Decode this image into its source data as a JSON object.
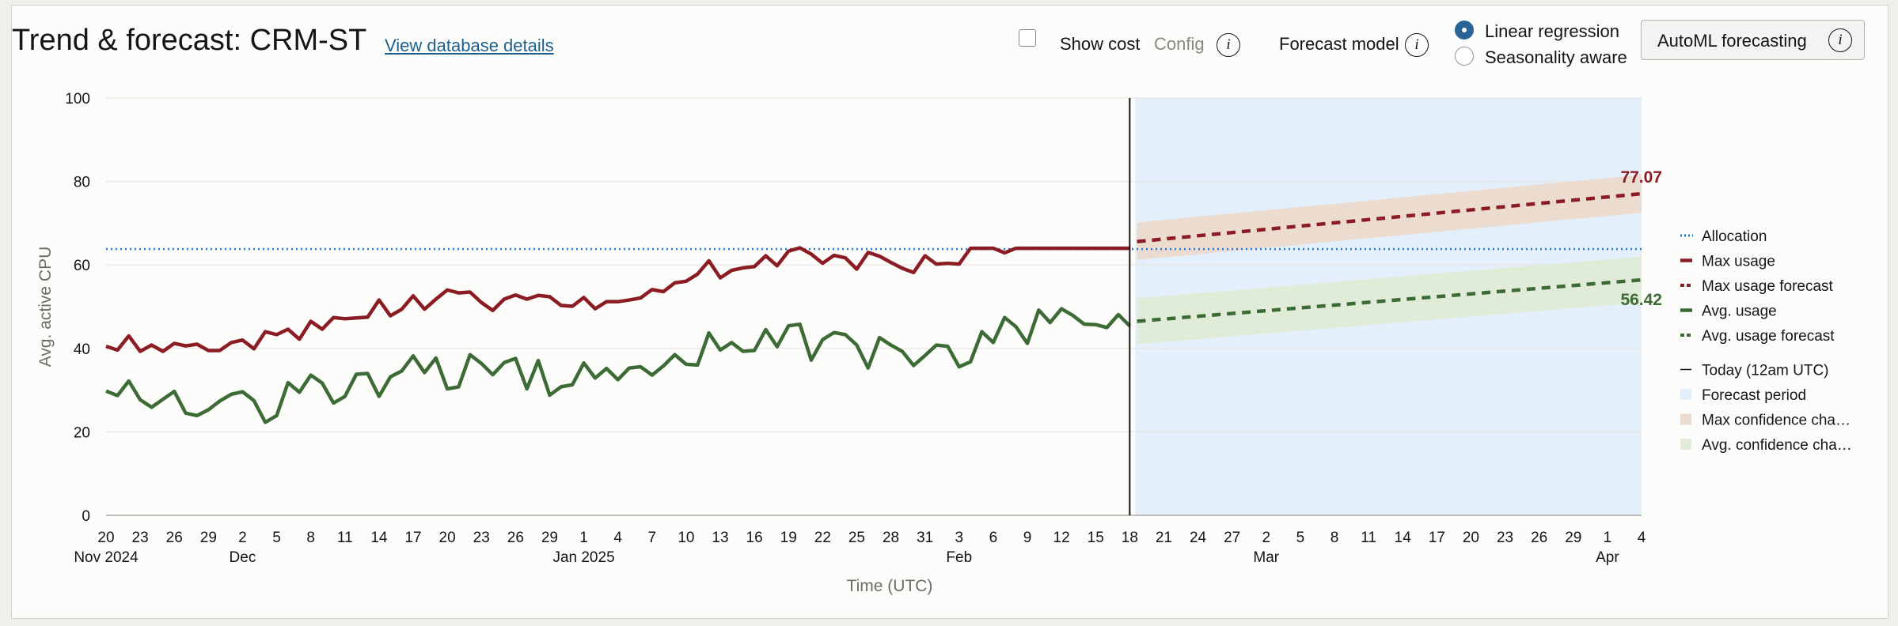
{
  "header": {
    "title": "Trend & forecast: CRM-ST",
    "link_label": "View database details",
    "show_cost_label": "Show cost",
    "config_label": "Config",
    "forecast_model_label": "Forecast model",
    "model_options": [
      "Linear regression",
      "Seasonality aware"
    ],
    "selected_model": "Linear regression",
    "automl_label": "AutoML forecasting",
    "info_glyph": "i"
  },
  "colors": {
    "allocation": "#1f78d1",
    "max_usage": "#8c1c24",
    "avg_usage": "#3d6b35",
    "forecast_region": "#e3effb",
    "max_band": "#ecdcd0",
    "avg_band": "#e1ecd8",
    "today_line": "#161513"
  },
  "chart_data": {
    "type": "line",
    "ylabel": "Avg. active CPU",
    "xlabel": "Time (UTC)",
    "ylim": [
      0,
      100
    ],
    "y_ticks": [
      0,
      20,
      40,
      60,
      80,
      100
    ],
    "x_range": [
      "2024-11-20",
      "2025-04-04"
    ],
    "x_ticks": [
      {
        "date": "2024-11-20",
        "label": "20",
        "sub": "Nov 2024"
      },
      {
        "date": "2024-11-23",
        "label": "23"
      },
      {
        "date": "2024-11-26",
        "label": "26"
      },
      {
        "date": "2024-11-29",
        "label": "29"
      },
      {
        "date": "2024-12-02",
        "label": "2",
        "sub": "Dec"
      },
      {
        "date": "2024-12-05",
        "label": "5"
      },
      {
        "date": "2024-12-08",
        "label": "8"
      },
      {
        "date": "2024-12-11",
        "label": "11"
      },
      {
        "date": "2024-12-14",
        "label": "14"
      },
      {
        "date": "2024-12-17",
        "label": "17"
      },
      {
        "date": "2024-12-20",
        "label": "20"
      },
      {
        "date": "2024-12-23",
        "label": "23"
      },
      {
        "date": "2024-12-26",
        "label": "26"
      },
      {
        "date": "2024-12-29",
        "label": "29"
      },
      {
        "date": "2025-01-01",
        "label": "1",
        "sub": "Jan 2025"
      },
      {
        "date": "2025-01-04",
        "label": "4"
      },
      {
        "date": "2025-01-07",
        "label": "7"
      },
      {
        "date": "2025-01-10",
        "label": "10"
      },
      {
        "date": "2025-01-13",
        "label": "13"
      },
      {
        "date": "2025-01-16",
        "label": "16"
      },
      {
        "date": "2025-01-19",
        "label": "19"
      },
      {
        "date": "2025-01-22",
        "label": "22"
      },
      {
        "date": "2025-01-25",
        "label": "25"
      },
      {
        "date": "2025-01-28",
        "label": "28"
      },
      {
        "date": "2025-01-31",
        "label": "31"
      },
      {
        "date": "2025-02-03",
        "label": "3",
        "sub": "Feb"
      },
      {
        "date": "2025-02-06",
        "label": "6"
      },
      {
        "date": "2025-02-09",
        "label": "9"
      },
      {
        "date": "2025-02-12",
        "label": "12"
      },
      {
        "date": "2025-02-15",
        "label": "15"
      },
      {
        "date": "2025-02-18",
        "label": "18"
      },
      {
        "date": "2025-02-21",
        "label": "21"
      },
      {
        "date": "2025-02-24",
        "label": "24"
      },
      {
        "date": "2025-02-27",
        "label": "27"
      },
      {
        "date": "2025-03-02",
        "label": "2",
        "sub": "Mar"
      },
      {
        "date": "2025-03-05",
        "label": "5"
      },
      {
        "date": "2025-03-08",
        "label": "8"
      },
      {
        "date": "2025-03-11",
        "label": "11"
      },
      {
        "date": "2025-03-14",
        "label": "14"
      },
      {
        "date": "2025-03-17",
        "label": "17"
      },
      {
        "date": "2025-03-20",
        "label": "20"
      },
      {
        "date": "2025-03-23",
        "label": "23"
      },
      {
        "date": "2025-03-26",
        "label": "26"
      },
      {
        "date": "2025-03-29",
        "label": "29"
      },
      {
        "date": "2025-04-01",
        "label": "1",
        "sub": "Apr"
      },
      {
        "date": "2025-04-04",
        "label": "4"
      }
    ],
    "today": "2025-02-18",
    "forecast_period": [
      "2025-02-19",
      "2025-04-04"
    ],
    "allocation": 63.8,
    "history_start": "2024-11-20",
    "max_usage": [
      40.5,
      39.6,
      43,
      39.3,
      40.8,
      39.3,
      41.2,
      40.6,
      41,
      39.5,
      39.5,
      41.4,
      42,
      39.9,
      44,
      43.3,
      44.6,
      42.2,
      46.5,
      44.6,
      47.4,
      47.1,
      47.3,
      47.5,
      51.6,
      47.8,
      49.4,
      52.6,
      49.4,
      51.8,
      54,
      53.3,
      53.5,
      51,
      49.1,
      51.8,
      52.8,
      51.8,
      52.7,
      52.4,
      50.3,
      50.1,
      52.2,
      49.5,
      51.2,
      51.2,
      51.6,
      52.1,
      54.1,
      53.6,
      55.7,
      56.1,
      57.8,
      61,
      56.9,
      58.7,
      59.3,
      59.6,
      62.2,
      59.8,
      63.3,
      64.1,
      62.6,
      60.4,
      62.3,
      61.7,
      59,
      63,
      62.1,
      60.6,
      59.2,
      58.2,
      62.2,
      60.2,
      60.4,
      60.2,
      64,
      64,
      64,
      62.9,
      64,
      64,
      64,
      64,
      64,
      64,
      64,
      64,
      64,
      64,
      64
    ],
    "avg_usage": [
      29.8,
      28.7,
      32.2,
      27.7,
      25.9,
      27.8,
      29.7,
      24.5,
      23.9,
      25.3,
      27.4,
      29,
      29.6,
      27.5,
      22.3,
      23.9,
      31.8,
      29.5,
      33.6,
      31.7,
      26.9,
      28.5,
      33.8,
      34,
      28.5,
      33.2,
      34.6,
      38.2,
      34.2,
      37.7,
      30.3,
      30.8,
      38.5,
      36.4,
      33.7,
      36.6,
      37.6,
      30.3,
      37.1,
      28.8,
      30.8,
      31.3,
      36.5,
      32.9,
      35.2,
      32.5,
      35.3,
      35.6,
      33.6,
      35.8,
      38.5,
      36.2,
      36,
      43.7,
      39.6,
      41.4,
      39.3,
      39.5,
      44.5,
      40.4,
      45.4,
      45.8,
      37.2,
      42.1,
      43.8,
      43.3,
      40.8,
      35.3,
      42.6,
      40.8,
      39.3,
      35.9,
      38.3,
      40.8,
      40.5,
      35.6,
      36.8,
      44,
      41.4,
      47.4,
      45.2,
      41.2,
      49.2,
      46.2,
      49.5,
      47.9,
      45.8,
      45.7,
      45,
      48.1,
      45.4
    ],
    "max_forecast": {
      "start": 65.6,
      "end": 77.07,
      "band_start": [
        61.2,
        70.2
      ],
      "band_end": [
        72.5,
        81.6
      ]
    },
    "avg_forecast": {
      "start": 46.5,
      "end": 56.42,
      "band_start": [
        41.0,
        52.0
      ],
      "band_end": [
        51.0,
        62.0
      ]
    },
    "end_labels": {
      "max": "77.07",
      "avg": "56.42"
    },
    "legend": {
      "position": "right",
      "items": [
        {
          "key": "allocation",
          "label": "Allocation",
          "style": "dotted"
        },
        {
          "key": "max_usage",
          "label": "Max usage",
          "style": "solid"
        },
        {
          "key": "max_usage",
          "label": "Max usage forecast",
          "style": "dashed"
        },
        {
          "key": "avg_usage",
          "label": "Avg. usage",
          "style": "solid"
        },
        {
          "key": "avg_usage",
          "label": "Avg. usage forecast",
          "style": "dashed"
        },
        {
          "key": "today_line",
          "label": "Today (12am UTC)",
          "style": "thin"
        },
        {
          "key": "forecast_region",
          "label": "Forecast period",
          "style": "swatch"
        },
        {
          "key": "max_band",
          "label": "Max confidence cha…",
          "style": "swatch"
        },
        {
          "key": "avg_band",
          "label": "Avg. confidence cha…",
          "style": "swatch"
        }
      ]
    }
  }
}
